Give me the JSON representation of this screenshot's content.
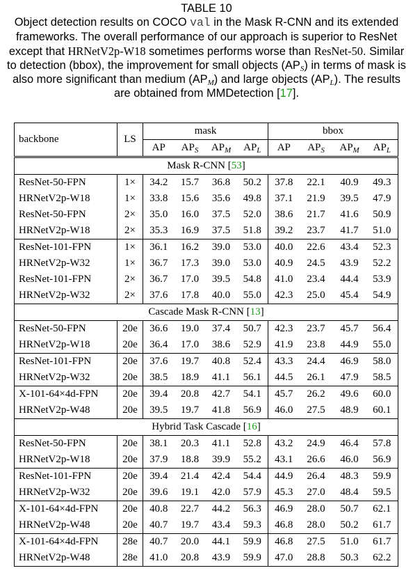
{
  "caption": {
    "title": "TABLE 10",
    "parts": [
      "Object detection results on COCO ",
      "val",
      " in the Mask R-CNN and its extended frameworks.  The overall performance of our approach is superior to ResNet except that ",
      "HRNetV2p-W18",
      " sometimes performs worse than ",
      "ResNet-50",
      ". Similar to detection (bbox), the improvement for small objects (AP",
      "S",
      ") in terms of mask is also more significant than medium (AP",
      "M",
      ") and large objects (AP",
      "L",
      "). The results are obtained from MMDetection [",
      "17",
      "]."
    ]
  },
  "table": {
    "header": {
      "backbone": "backbone",
      "ls": "LS",
      "mask": "mask",
      "bbox": "bbox",
      "mask_columns": [
        {
          "main": "AP"
        },
        {
          "main": "AP",
          "sub": "S"
        },
        {
          "main": "AP",
          "sub": "M"
        },
        {
          "main": "AP",
          "sub": "L"
        }
      ],
      "bbox_columns": [
        {
          "main": "AP"
        },
        {
          "main": "AP",
          "sub": "S"
        },
        {
          "main": "AP",
          "sub": "M"
        },
        {
          "main": "AP",
          "sub": "L"
        }
      ]
    },
    "sections": [
      {
        "prefix": "Mask R-CNN [",
        "ref": "53",
        "suffix": "]",
        "groups": [
          [
            [
              "ResNet-50-FPN",
              "1×",
              "34.2",
              "15.7",
              "36.8",
              "50.2",
              "37.8",
              "22.1",
              "40.9",
              "49.3"
            ],
            [
              "HRNetV2p-W18",
              "1×",
              "33.8",
              "15.6",
              "35.6",
              "49.8",
              "37.1",
              "21.9",
              "39.5",
              "47.9"
            ],
            [
              "ResNet-50-FPN",
              "2×",
              "35.0",
              "16.0",
              "37.5",
              "52.0",
              "38.6",
              "21.7",
              "41.6",
              "50.9"
            ],
            [
              "HRNetV2p-W18",
              "2×",
              "35.3",
              "16.9",
              "37.5",
              "51.8",
              "39.2",
              "23.7",
              "41.7",
              "51.0"
            ]
          ],
          [
            [
              "ResNet-101-FPN",
              "1×",
              "36.1",
              "16.2",
              "39.0",
              "53.0",
              "40.0",
              "22.6",
              "43.4",
              "52.3"
            ],
            [
              "HRNetV2p-W32",
              "1×",
              "36.7",
              "17.3",
              "39.0",
              "53.0",
              "40.9",
              "24.5",
              "43.9",
              "52.2"
            ],
            [
              "ResNet-101-FPN",
              "2×",
              "36.7",
              "17.0",
              "39.5",
              "54.8",
              "41.0",
              "23.4",
              "44.4",
              "53.9"
            ],
            [
              "HRNetV2p-W32",
              "2×",
              "37.6",
              "17.8",
              "40.0",
              "55.0",
              "42.3",
              "25.0",
              "45.4",
              "54.9"
            ]
          ]
        ]
      },
      {
        "prefix": "Cascade Mask R-CNN [",
        "ref": "13",
        "suffix": "]",
        "groups": [
          [
            [
              "ResNet-50-FPN",
              "20e",
              "36.6",
              "19.0",
              "37.4",
              "50.7",
              "42.3",
              "23.7",
              "45.7",
              "56.4"
            ],
            [
              "HRNetV2p-W18",
              "20e",
              "36.4",
              "17.0",
              "38.6",
              "52.9",
              "41.9",
              "23.8",
              "44.9",
              "55.0"
            ]
          ],
          [
            [
              "ResNet-101-FPN",
              "20e",
              "37.6",
              "19.7",
              "40.8",
              "52.4",
              "43.3",
              "24.4",
              "46.9",
              "58.0"
            ],
            [
              "HRNetV2p-W32",
              "20e",
              "38.5",
              "18.9",
              "41.1",
              "56.1",
              "44.5",
              "26.1",
              "47.9",
              "58.5"
            ]
          ],
          [
            [
              "X-101-64×4d-FPN",
              "20e",
              "39.4",
              "20.8",
              "42.7",
              "54.1",
              "45.7",
              "26.2",
              "49.6",
              "60.0"
            ],
            [
              "HRNetV2p-W48",
              "20e",
              "39.5",
              "19.7",
              "41.8",
              "56.9",
              "46.0",
              "27.5",
              "48.9",
              "60.1"
            ]
          ]
        ]
      },
      {
        "prefix": "Hybrid Task Cascade [",
        "ref": "16",
        "suffix": "]",
        "groups": [
          [
            [
              "ResNet-50-FPN",
              "20e",
              "38.1",
              "20.3",
              "41.1",
              "52.8",
              "43.2",
              "24.9",
              "46.4",
              "57.8"
            ],
            [
              "HRNetV2p-W18",
              "20e",
              "37.9",
              "18.8",
              "39.9",
              "55.2",
              "43.1",
              "26.6",
              "46.0",
              "56.9"
            ]
          ],
          [
            [
              "ResNet-101-FPN",
              "20e",
              "39.4",
              "21.4",
              "42.4",
              "54.4",
              "44.9",
              "26.4",
              "48.3",
              "59.9"
            ],
            [
              "HRNetV2p-W32",
              "20e",
              "39.6",
              "19.1",
              "42.0",
              "57.9",
              "45.3",
              "27.0",
              "48.4",
              "59.5"
            ]
          ],
          [
            [
              "X-101-64×4d-FPN",
              "20e",
              "40.8",
              "22.7",
              "44.2",
              "56.3",
              "46.9",
              "28.0",
              "50.7",
              "62.1"
            ],
            [
              "HRNetV2p-W48",
              "20e",
              "40.7",
              "19.7",
              "43.4",
              "59.3",
              "46.8",
              "28.0",
              "50.2",
              "61.7"
            ]
          ],
          [
            [
              "X-101-64×4d-FPN",
              "28e",
              "40.7",
              "20.0",
              "44.1",
              "59.9",
              "46.8",
              "27.5",
              "51.0",
              "61.7"
            ],
            [
              "HRNetV2p-W48",
              "28e",
              "41.0",
              "20.8",
              "43.9",
              "59.9",
              "47.0",
              "28.8",
              "50.3",
              "62.2"
            ]
          ]
        ]
      }
    ]
  }
}
